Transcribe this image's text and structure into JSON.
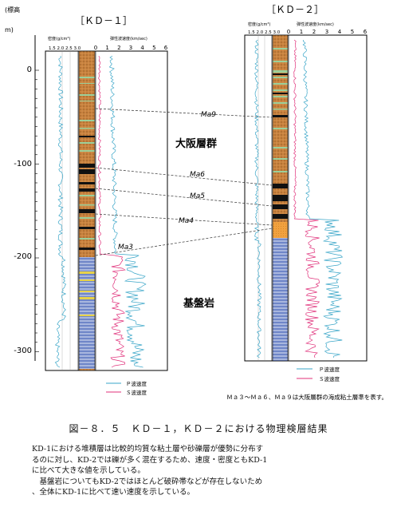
{
  "y_axis": {
    "label_line1": "(標高",
    "label_line2": "m)",
    "ticks": [
      "0",
      "-100",
      "-200",
      "-300"
    ]
  },
  "kd1": {
    "title": "［ＫＤ－１］",
    "density_label": "密度(g/cm³)",
    "density_ticks": "1.5 2.0 2.5 3.0",
    "velocity_label": "弾性波速度(km/sec)",
    "velocity_ticks": [
      "0",
      "1",
      "2",
      "3",
      "4",
      "5",
      "6"
    ],
    "legend_p": "Ｐ波速度",
    "legend_s": "Ｓ波速度"
  },
  "kd2": {
    "title": "［ＫＤ－２］",
    "density_label": "密度(g/cm³)",
    "density_ticks": "1.5 2.0 2.5 3.0",
    "velocity_label": "弾性波速度(km/sec)",
    "velocity_ticks": [
      "0",
      "1",
      "2",
      "3",
      "4",
      "5",
      "6"
    ],
    "legend_p": "Ｐ波速度",
    "legend_s": "Ｓ波速度"
  },
  "formations": {
    "osaka": "大阪層群",
    "basement": "基盤岩"
  },
  "marine_clays": [
    "Ma9",
    "Ma6",
    "Ma5",
    "Ma4",
    "Ma3"
  ],
  "footnote": "Ｍａ３～Ｍａ６、Ｍａ９は大阪層群の海成粘土層準を表す。",
  "caption": "図－８．５　ＫＤ－１，ＫＤ－２における物理検層結果",
  "description": [
    "KD-1における堆積層は比較的均質な粘土層や砂礫層が優勢に分布す",
    "るのに対し、KD-2では礫が多く混在するため、速度・密度ともKD-1",
    "に比べて大きな値を示している。",
    "　基盤岩についてもKD-2ではほとんど破砕帯などが存在しないため",
    "、全体にKD-1に比べて速い速度を示している。"
  ],
  "colors": {
    "p_wave": "#3aa6c8",
    "s_wave": "#e0307a",
    "gravel": "#c9823e",
    "basement": "#6f86c8",
    "clay": "#9ccf9a",
    "black": "#111111"
  }
}
